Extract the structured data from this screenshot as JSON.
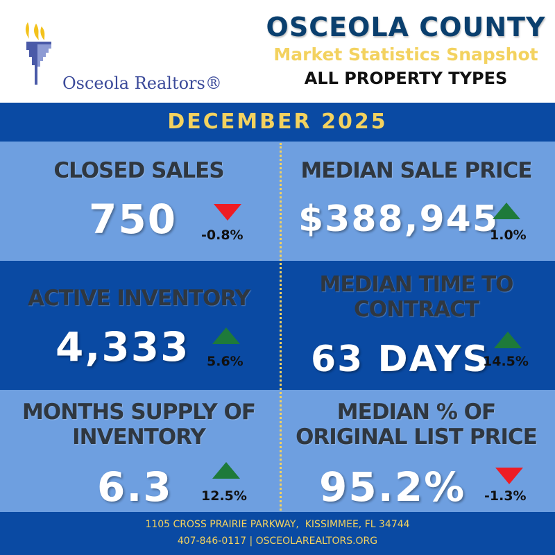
{
  "header": {
    "logo_text": "Osceola Realtors®",
    "county_title": "OSCEOLA COUNTY",
    "subtitle": "Market Statistics Snapshot",
    "property_types": "ALL PROPERTY TYPES"
  },
  "period": "DECEMBER 2025",
  "stats": {
    "closed_sales": {
      "label": "CLOSED SALES",
      "value": "750",
      "change": "-0.8%",
      "direction": "down"
    },
    "median_sale_price": {
      "label": "MEDIAN SALE PRICE",
      "value": "$388,945",
      "change": "1.0%",
      "direction": "up"
    },
    "active_inventory": {
      "label": "ACTIVE INVENTORY",
      "value": "4,333",
      "change": "5.6%",
      "direction": "up"
    },
    "median_time_to_contract": {
      "label_line1": "MEDIAN TIME TO",
      "label_line2": "CONTRACT",
      "value": "63 DAYS",
      "change": "14.5%",
      "direction": "up"
    },
    "months_supply": {
      "label_line1": "MONTHS SUPPLY OF",
      "label_line2": "INVENTORY",
      "value": "6.3",
      "change": "12.5%",
      "direction": "up"
    },
    "median_pct_list": {
      "label_line1": "MEDIAN % OF",
      "label_line2": "ORIGINAL LIST PRICE",
      "value": "95.2%",
      "change": "-1.3%",
      "direction": "down"
    }
  },
  "colors": {
    "navy": "#0a3f6e",
    "band_blue": "#0a4aa3",
    "light_blue": "#6e9fe0",
    "gold": "#f3d25f",
    "up_green": "#1e7a3a",
    "down_red": "#ee1c24"
  },
  "icons": {
    "logo": "torch-flame-logo",
    "up": "triangle-up-icon",
    "down": "triangle-down-icon"
  },
  "footer": {
    "address": "1105 CROSS PRAIRIE PARKWAY,  KISSIMMEE, FL 34744",
    "contact": "407-846-0117 | OSCEOLAREALTORS.ORG"
  }
}
